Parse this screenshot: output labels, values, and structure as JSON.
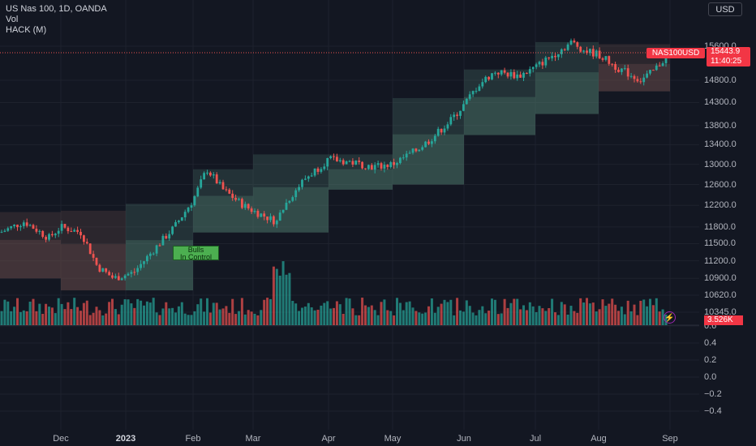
{
  "legend": {
    "symbol": "US Nas 100, 1D, OANDA",
    "volume": "Vol",
    "indicator": "HACK (M)"
  },
  "currency_button": "USD",
  "tags": {
    "symbol": "NAS100USD",
    "price": "15443.9",
    "countdown": "11:40:25",
    "volume": "3.526K"
  },
  "annotation": {
    "line1": "Bulls",
    "line2": "In Control"
  },
  "colors": {
    "bull": "#26a69a",
    "bear": "#ef5350",
    "bull_zone": "#4f7b6e",
    "bear_zone": "#6b4e4d",
    "background": "#131722"
  },
  "icons": [
    "lightning-icon"
  ],
  "chart_data": {
    "type": "candlestick",
    "title": "US Nas 100, 1D, OANDA",
    "x_tick_labels": [
      "Dec",
      "2023",
      "Feb",
      "Mar",
      "Apr",
      "May",
      "Jun",
      "Jul",
      "Aug",
      "Sep"
    ],
    "price_axis": {
      "ticks": [
        15600.0,
        14800.0,
        14300.0,
        13800.0,
        13400.0,
        13000.0,
        12600.0,
        12200.0,
        11800.0,
        11500.0,
        11200.0,
        10900.0,
        10620.0,
        10345.0
      ],
      "scale": "log",
      "range": [
        10345,
        15700
      ]
    },
    "oscillator_axis": {
      "ticks": [
        0.6,
        0.4,
        0.2,
        0.0,
        -0.2,
        -0.4
      ],
      "range": [
        -0.5,
        0.6
      ]
    },
    "series": [
      {
        "name": "NAS100USD",
        "last_value": 15443.9
      },
      {
        "name": "Vol",
        "last_value": "3.526K"
      }
    ],
    "monthly_zones": [
      {
        "month": "Nov",
        "high": 12075,
        "low": 10900,
        "direction": "bear"
      },
      {
        "month": "Dec",
        "high": 12100,
        "low": 10700,
        "direction": "bear"
      },
      {
        "month": "Jan",
        "high": 12230,
        "low": 10700,
        "direction": "bull"
      },
      {
        "month": "Feb",
        "high": 12900,
        "low": 11700,
        "direction": "bull"
      },
      {
        "month": "Mar",
        "high": 13200,
        "low": 11700,
        "direction": "bull"
      },
      {
        "month": "Apr",
        "high": 13200,
        "low": 12500,
        "direction": "bull"
      },
      {
        "month": "May",
        "high": 14400,
        "low": 12600,
        "direction": "bull"
      },
      {
        "month": "Jun",
        "high": 15050,
        "low": 13600,
        "direction": "bull"
      },
      {
        "month": "Jul",
        "high": 15700,
        "low": 14050,
        "direction": "bull"
      },
      {
        "month": "Aug",
        "high": 15650,
        "low": 14550,
        "direction": "bear"
      }
    ]
  }
}
